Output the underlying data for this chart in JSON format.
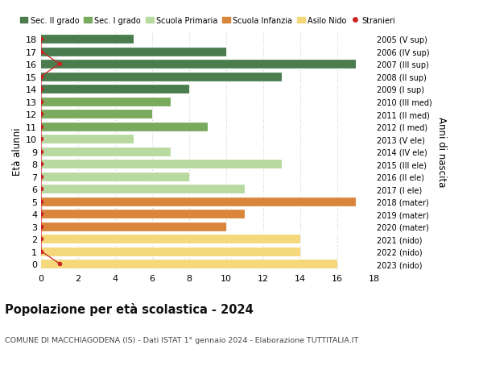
{
  "ages": [
    18,
    17,
    16,
    15,
    14,
    13,
    12,
    11,
    10,
    9,
    8,
    7,
    6,
    5,
    4,
    3,
    2,
    1,
    0
  ],
  "right_labels": [
    "2005 (V sup)",
    "2006 (IV sup)",
    "2007 (III sup)",
    "2008 (II sup)",
    "2009 (I sup)",
    "2010 (III med)",
    "2011 (II med)",
    "2012 (I med)",
    "2013 (V ele)",
    "2014 (IV ele)",
    "2015 (III ele)",
    "2016 (II ele)",
    "2017 (I ele)",
    "2018 (mater)",
    "2019 (mater)",
    "2020 (mater)",
    "2021 (nido)",
    "2022 (nido)",
    "2023 (nido)"
  ],
  "bar_values": [
    5,
    10,
    17,
    13,
    8,
    7,
    6,
    9,
    5,
    7,
    13,
    8,
    11,
    17,
    11,
    10,
    14,
    14,
    16
  ],
  "bar_colors": [
    "#4a7c4e",
    "#4a7c4e",
    "#4a7c4e",
    "#4a7c4e",
    "#4a7c4e",
    "#7aaa5e",
    "#7aaa5e",
    "#7aaa5e",
    "#b8d9a0",
    "#b8d9a0",
    "#b8d9a0",
    "#b8d9a0",
    "#b8d9a0",
    "#d9863c",
    "#d9863c",
    "#d9863c",
    "#f5d87a",
    "#f5d87a",
    "#f5d87a"
  ],
  "stranieri_dot_x": [
    0,
    0,
    1,
    0,
    0,
    0,
    0,
    0,
    0,
    0,
    0,
    0,
    0,
    0,
    0,
    0,
    0,
    0,
    1
  ],
  "ylabel_left": "Età alunni",
  "ylabel_right": "Anni di nascita",
  "xlim": [
    0,
    18
  ],
  "title_main": "Popolazione per età scolastica - 2024",
  "title_sub": "COMUNE DI MACCHIAGODENA (IS) - Dati ISTAT 1° gennaio 2024 - Elaborazione TUTTITALIA.IT",
  "legend_items": [
    {
      "label": "Sec. II grado",
      "color": "#4a7c4e",
      "type": "patch"
    },
    {
      "label": "Sec. I grado",
      "color": "#7aaa5e",
      "type": "patch"
    },
    {
      "label": "Scuola Primaria",
      "color": "#b8d9a0",
      "type": "patch"
    },
    {
      "label": "Scuola Infanzia",
      "color": "#d9863c",
      "type": "patch"
    },
    {
      "label": "Asilo Nido",
      "color": "#f5d87a",
      "type": "patch"
    },
    {
      "label": "Stranieri",
      "color": "#cc2222",
      "type": "dot"
    }
  ],
  "bg_color": "#ffffff",
  "grid_color": "#cccccc",
  "bar_height": 0.78,
  "xticks": [
    0,
    2,
    4,
    6,
    8,
    10,
    12,
    14,
    16,
    18
  ]
}
